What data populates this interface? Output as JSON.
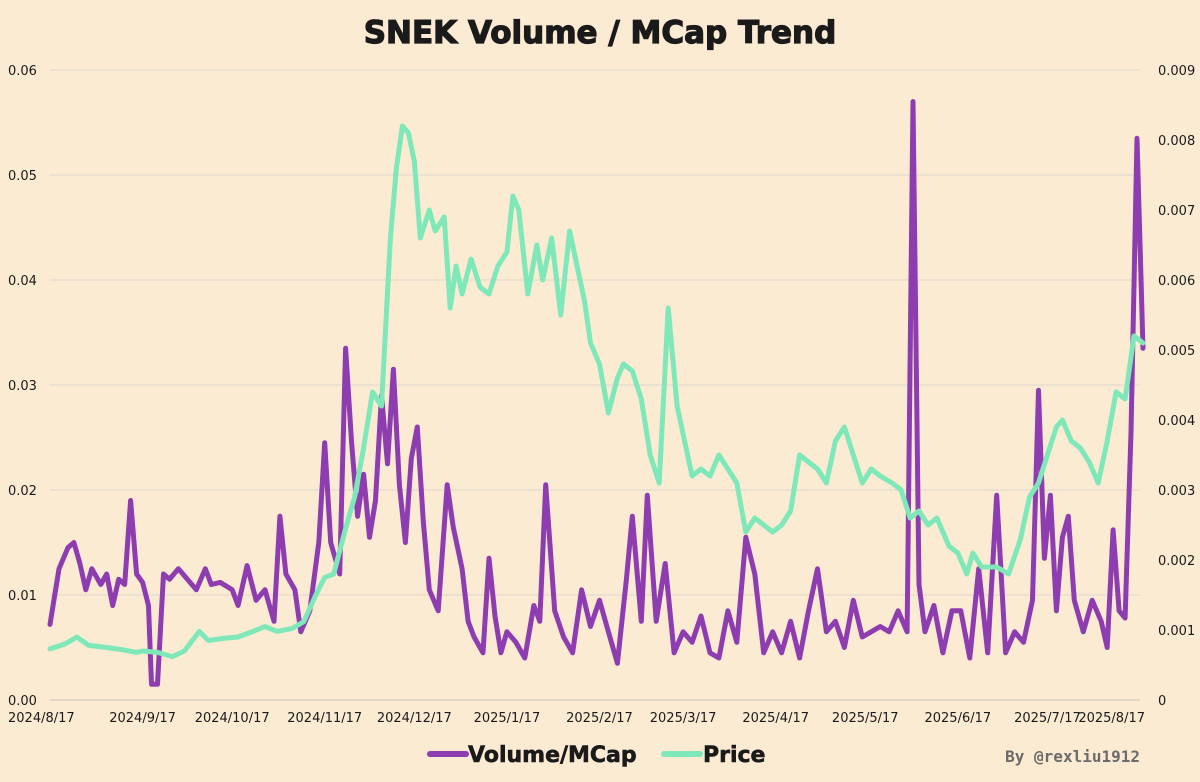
{
  "chart_data": {
    "type": "line",
    "title": "SNEK Volume / MCap Trend",
    "credit": "By @rexliu1912",
    "x_ticks": [
      "2024/8/17",
      "2024/9/17",
      "2024/10/17",
      "2024/11/17",
      "2024/12/17",
      "2025/1/17",
      "2025/2/17",
      "2025/3/17",
      "2025/4/17",
      "2025/5/17",
      "2025/6/17",
      "2025/7/17",
      "2025/8/17"
    ],
    "y_left": {
      "ylim": [
        0,
        0.06
      ],
      "ticks": [
        "0.00",
        "0.01",
        "0.02",
        "0.03",
        "0.04",
        "0.05",
        "0.06"
      ]
    },
    "y_right": {
      "ylim": [
        0,
        0.009
      ],
      "ticks": [
        "0",
        "0.001",
        "0.002",
        "0.003",
        "0.004",
        "0.005",
        "0.006",
        "0.007",
        "0.008",
        "0.009"
      ]
    },
    "grid": true,
    "legend_position": "bottom-center",
    "series": [
      {
        "name": "Volume/MCap",
        "axis": "left",
        "color": "#8e3db0",
        "points": [
          [
            "2024-08-17",
            0.0072
          ],
          [
            "2024-08-20",
            0.0125
          ],
          [
            "2024-08-23",
            0.0145
          ],
          [
            "2024-08-25",
            0.015
          ],
          [
            "2024-08-27",
            0.013
          ],
          [
            "2024-08-29",
            0.0105
          ],
          [
            "2024-08-31",
            0.0125
          ],
          [
            "2024-09-03",
            0.011
          ],
          [
            "2024-09-05",
            0.012
          ],
          [
            "2024-09-07",
            0.009
          ],
          [
            "2024-09-09",
            0.0115
          ],
          [
            "2024-09-11",
            0.011
          ],
          [
            "2024-09-13",
            0.019
          ],
          [
            "2024-09-15",
            0.012
          ],
          [
            "2024-09-17",
            0.0112
          ],
          [
            "2024-09-19",
            0.009
          ],
          [
            "2024-09-20",
            0.0015
          ],
          [
            "2024-09-22",
            0.0015
          ],
          [
            "2024-09-24",
            0.012
          ],
          [
            "2024-09-26",
            0.0115
          ],
          [
            "2024-09-29",
            0.0125
          ],
          [
            "2024-10-02",
            0.0115
          ],
          [
            "2024-10-05",
            0.0105
          ],
          [
            "2024-10-08",
            0.0125
          ],
          [
            "2024-10-10",
            0.011
          ],
          [
            "2024-10-13",
            0.0112
          ],
          [
            "2024-10-17",
            0.0105
          ],
          [
            "2024-10-19",
            0.009
          ],
          [
            "2024-10-22",
            0.0128
          ],
          [
            "2024-10-25",
            0.0095
          ],
          [
            "2024-10-28",
            0.0105
          ],
          [
            "2024-10-31",
            0.0075
          ],
          [
            "2024-11-02",
            0.0175
          ],
          [
            "2024-11-04",
            0.012
          ],
          [
            "2024-11-07",
            0.0105
          ],
          [
            "2024-11-09",
            0.0065
          ],
          [
            "2024-11-12",
            0.0085
          ],
          [
            "2024-11-15",
            0.015
          ],
          [
            "2024-11-17",
            0.0245
          ],
          [
            "2024-11-19",
            0.015
          ],
          [
            "2024-11-22",
            0.012
          ],
          [
            "2024-11-24",
            0.0335
          ],
          [
            "2024-11-26",
            0.0245
          ],
          [
            "2024-11-28",
            0.0175
          ],
          [
            "2024-11-30",
            0.0215
          ],
          [
            "2024-12-02",
            0.0155
          ],
          [
            "2024-12-04",
            0.019
          ],
          [
            "2024-12-06",
            0.029
          ],
          [
            "2024-12-08",
            0.0225
          ],
          [
            "2024-12-10",
            0.0315
          ],
          [
            "2024-12-12",
            0.0205
          ],
          [
            "2024-12-14",
            0.015
          ],
          [
            "2024-12-16",
            0.023
          ],
          [
            "2024-12-18",
            0.026
          ],
          [
            "2024-12-20",
            0.017
          ],
          [
            "2024-12-22",
            0.0105
          ],
          [
            "2024-12-25",
            0.0085
          ],
          [
            "2024-12-28",
            0.0205
          ],
          [
            "2024-12-30",
            0.0165
          ],
          [
            "2025-01-02",
            0.0125
          ],
          [
            "2025-01-04",
            0.0075
          ],
          [
            "2025-01-06",
            0.006
          ],
          [
            "2025-01-09",
            0.0045
          ],
          [
            "2025-01-11",
            0.0135
          ],
          [
            "2025-01-13",
            0.008
          ],
          [
            "2025-01-15",
            0.0045
          ],
          [
            "2025-01-17",
            0.0065
          ],
          [
            "2025-01-20",
            0.0055
          ],
          [
            "2025-01-23",
            0.004
          ],
          [
            "2025-01-26",
            0.009
          ],
          [
            "2025-01-28",
            0.0075
          ],
          [
            "2025-01-30",
            0.0205
          ],
          [
            "2025-02-02",
            0.0085
          ],
          [
            "2025-02-05",
            0.006
          ],
          [
            "2025-02-08",
            0.0045
          ],
          [
            "2025-02-11",
            0.0105
          ],
          [
            "2025-02-14",
            0.007
          ],
          [
            "2025-02-17",
            0.0095
          ],
          [
            "2025-02-20",
            0.0065
          ],
          [
            "2025-02-23",
            0.0035
          ],
          [
            "2025-02-26",
            0.0115
          ],
          [
            "2025-02-28",
            0.0175
          ],
          [
            "2025-03-03",
            0.0075
          ],
          [
            "2025-03-05",
            0.0195
          ],
          [
            "2025-03-08",
            0.0075
          ],
          [
            "2025-03-11",
            0.013
          ],
          [
            "2025-03-14",
            0.0045
          ],
          [
            "2025-03-17",
            0.0065
          ],
          [
            "2025-03-20",
            0.0055
          ],
          [
            "2025-03-23",
            0.008
          ],
          [
            "2025-03-26",
            0.0045
          ],
          [
            "2025-03-29",
            0.004
          ],
          [
            "2025-04-01",
            0.0085
          ],
          [
            "2025-04-04",
            0.0055
          ],
          [
            "2025-04-07",
            0.0155
          ],
          [
            "2025-04-10",
            0.012
          ],
          [
            "2025-04-13",
            0.0045
          ],
          [
            "2025-04-16",
            0.0065
          ],
          [
            "2025-04-19",
            0.0045
          ],
          [
            "2025-04-22",
            0.0075
          ],
          [
            "2025-04-25",
            0.004
          ],
          [
            "2025-04-28",
            0.0085
          ],
          [
            "2025-05-01",
            0.0125
          ],
          [
            "2025-05-04",
            0.0065
          ],
          [
            "2025-05-07",
            0.0075
          ],
          [
            "2025-05-10",
            0.005
          ],
          [
            "2025-05-13",
            0.0095
          ],
          [
            "2025-05-16",
            0.006
          ],
          [
            "2025-05-19",
            0.0065
          ],
          [
            "2025-05-22",
            0.007
          ],
          [
            "2025-05-25",
            0.0065
          ],
          [
            "2025-05-28",
            0.0085
          ],
          [
            "2025-05-31",
            0.0065
          ],
          [
            "2025-06-02",
            0.057
          ],
          [
            "2025-06-04",
            0.011
          ],
          [
            "2025-06-06",
            0.0065
          ],
          [
            "2025-06-09",
            0.009
          ],
          [
            "2025-06-12",
            0.0045
          ],
          [
            "2025-06-15",
            0.0085
          ],
          [
            "2025-06-18",
            0.0085
          ],
          [
            "2025-06-21",
            0.004
          ],
          [
            "2025-06-24",
            0.0125
          ],
          [
            "2025-06-27",
            0.0045
          ],
          [
            "2025-06-30",
            0.0195
          ],
          [
            "2025-07-03",
            0.0045
          ],
          [
            "2025-07-06",
            0.0065
          ],
          [
            "2025-07-09",
            0.0055
          ],
          [
            "2025-07-12",
            0.0095
          ],
          [
            "2025-07-14",
            0.0295
          ],
          [
            "2025-07-16",
            0.0135
          ],
          [
            "2025-07-18",
            0.0195
          ],
          [
            "2025-07-20",
            0.0085
          ],
          [
            "2025-07-22",
            0.0155
          ],
          [
            "2025-07-24",
            0.0175
          ],
          [
            "2025-07-26",
            0.0095
          ],
          [
            "2025-07-29",
            0.0065
          ],
          [
            "2025-08-01",
            0.0095
          ],
          [
            "2025-08-04",
            0.0075
          ],
          [
            "2025-08-06",
            0.005
          ],
          [
            "2025-08-08",
            0.0162
          ],
          [
            "2025-08-10",
            0.0085
          ],
          [
            "2025-08-12",
            0.0078
          ],
          [
            "2025-08-14",
            0.0255
          ],
          [
            "2025-08-16",
            0.0535
          ],
          [
            "2025-08-18",
            0.0335
          ]
        ]
      },
      {
        "name": "Price",
        "axis": "right",
        "color": "#7ee8b9",
        "points": [
          [
            "2024-08-17",
            0.00073
          ],
          [
            "2024-08-22",
            0.0008
          ],
          [
            "2024-08-26",
            0.0009
          ],
          [
            "2024-08-30",
            0.00078
          ],
          [
            "2024-09-05",
            0.00075
          ],
          [
            "2024-09-10",
            0.00072
          ],
          [
            "2024-09-15",
            0.00068
          ],
          [
            "2024-09-17",
            0.0007
          ],
          [
            "2024-09-22",
            0.00068
          ],
          [
            "2024-09-27",
            0.00062
          ],
          [
            "2024-10-01",
            0.0007
          ],
          [
            "2024-10-06",
            0.00098
          ],
          [
            "2024-10-09",
            0.00085
          ],
          [
            "2024-10-14",
            0.00088
          ],
          [
            "2024-10-19",
            0.0009
          ],
          [
            "2024-10-24",
            0.00098
          ],
          [
            "2024-10-28",
            0.00105
          ],
          [
            "2024-11-01",
            0.00098
          ],
          [
            "2024-11-06",
            0.00102
          ],
          [
            "2024-11-10",
            0.00112
          ],
          [
            "2024-11-14",
            0.0015
          ],
          [
            "2024-11-17",
            0.00175
          ],
          [
            "2024-11-20",
            0.0018
          ],
          [
            "2024-11-24",
            0.00245
          ],
          [
            "2024-11-27",
            0.0029
          ],
          [
            "2024-11-30",
            0.0036
          ],
          [
            "2024-12-03",
            0.0044
          ],
          [
            "2024-12-06",
            0.0042
          ],
          [
            "2024-12-09",
            0.0066
          ],
          [
            "2024-12-11",
            0.0076
          ],
          [
            "2024-12-13",
            0.0082
          ],
          [
            "2024-12-15",
            0.0081
          ],
          [
            "2024-12-17",
            0.0077
          ],
          [
            "2024-12-19",
            0.0066
          ],
          [
            "2024-12-22",
            0.007
          ],
          [
            "2024-12-24",
            0.0067
          ],
          [
            "2024-12-27",
            0.0069
          ],
          [
            "2024-12-29",
            0.0056
          ],
          [
            "2024-12-31",
            0.0062
          ],
          [
            "2025-01-02",
            0.0058
          ],
          [
            "2025-01-05",
            0.0063
          ],
          [
            "2025-01-08",
            0.0059
          ],
          [
            "2025-01-11",
            0.0058
          ],
          [
            "2025-01-14",
            0.0062
          ],
          [
            "2025-01-17",
            0.0064
          ],
          [
            "2025-01-19",
            0.0072
          ],
          [
            "2025-01-21",
            0.007
          ],
          [
            "2025-01-24",
            0.0058
          ],
          [
            "2025-01-27",
            0.0065
          ],
          [
            "2025-01-29",
            0.006
          ],
          [
            "2025-02-01",
            0.0066
          ],
          [
            "2025-02-04",
            0.0055
          ],
          [
            "2025-02-07",
            0.0067
          ],
          [
            "2025-02-09",
            0.0063
          ],
          [
            "2025-02-12",
            0.0057
          ],
          [
            "2025-02-14",
            0.0051
          ],
          [
            "2025-02-17",
            0.0048
          ],
          [
            "2025-02-20",
            0.0041
          ],
          [
            "2025-02-23",
            0.0046
          ],
          [
            "2025-02-25",
            0.0048
          ],
          [
            "2025-02-28",
            0.0047
          ],
          [
            "2025-03-03",
            0.0043
          ],
          [
            "2025-03-06",
            0.0035
          ],
          [
            "2025-03-09",
            0.0031
          ],
          [
            "2025-03-12",
            0.0056
          ],
          [
            "2025-03-15",
            0.0042
          ],
          [
            "2025-03-17",
            0.0038
          ],
          [
            "2025-03-20",
            0.0032
          ],
          [
            "2025-03-23",
            0.0033
          ],
          [
            "2025-03-26",
            0.0032
          ],
          [
            "2025-03-29",
            0.0035
          ],
          [
            "2025-04-01",
            0.0033
          ],
          [
            "2025-04-04",
            0.0031
          ],
          [
            "2025-04-07",
            0.0024
          ],
          [
            "2025-04-10",
            0.0026
          ],
          [
            "2025-04-13",
            0.0025
          ],
          [
            "2025-04-16",
            0.0024
          ],
          [
            "2025-04-19",
            0.0025
          ],
          [
            "2025-04-22",
            0.0027
          ],
          [
            "2025-04-25",
            0.0035
          ],
          [
            "2025-04-28",
            0.0034
          ],
          [
            "2025-05-01",
            0.0033
          ],
          [
            "2025-05-04",
            0.0031
          ],
          [
            "2025-05-07",
            0.0037
          ],
          [
            "2025-05-10",
            0.0039
          ],
          [
            "2025-05-13",
            0.0035
          ],
          [
            "2025-05-16",
            0.0031
          ],
          [
            "2025-05-19",
            0.0033
          ],
          [
            "2025-05-22",
            0.0032
          ],
          [
            "2025-05-26",
            0.0031
          ],
          [
            "2025-05-29",
            0.003
          ],
          [
            "2025-06-01",
            0.0026
          ],
          [
            "2025-06-04",
            0.0027
          ],
          [
            "2025-06-07",
            0.0025
          ],
          [
            "2025-06-10",
            0.0026
          ],
          [
            "2025-06-14",
            0.0022
          ],
          [
            "2025-06-17",
            0.0021
          ],
          [
            "2025-06-20",
            0.0018
          ],
          [
            "2025-06-22",
            0.0021
          ],
          [
            "2025-06-25",
            0.0019
          ],
          [
            "2025-06-30",
            0.0019
          ],
          [
            "2025-07-04",
            0.0018
          ],
          [
            "2025-07-08",
            0.0023
          ],
          [
            "2025-07-11",
            0.0029
          ],
          [
            "2025-07-14",
            0.0031
          ],
          [
            "2025-07-17",
            0.0035
          ],
          [
            "2025-07-20",
            0.0039
          ],
          [
            "2025-07-22",
            0.004
          ],
          [
            "2025-07-25",
            0.0037
          ],
          [
            "2025-07-28",
            0.0036
          ],
          [
            "2025-07-31",
            0.0034
          ],
          [
            "2025-08-03",
            0.0031
          ],
          [
            "2025-08-06",
            0.0037
          ],
          [
            "2025-08-09",
            0.0044
          ],
          [
            "2025-08-12",
            0.0043
          ],
          [
            "2025-08-15",
            0.0052
          ],
          [
            "2025-08-18",
            0.0051
          ]
        ]
      }
    ]
  }
}
